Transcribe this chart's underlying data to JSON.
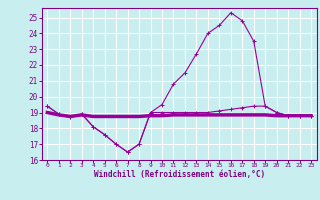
{
  "title": "",
  "xlabel": "Windchill (Refroidissement éolien,°C)",
  "bg_color": "#c8eef0",
  "grid_color": "#ffffff",
  "line_color": "#990099",
  "xlim": [
    -0.5,
    23.5
  ],
  "ylim": [
    16,
    25.6
  ],
  "yticks": [
    16,
    17,
    18,
    19,
    20,
    21,
    22,
    23,
    24,
    25
  ],
  "xticks": [
    0,
    1,
    2,
    3,
    4,
    5,
    6,
    7,
    8,
    9,
    10,
    11,
    12,
    13,
    14,
    15,
    16,
    17,
    18,
    19,
    20,
    21,
    22,
    23
  ],
  "hours": [
    0,
    1,
    2,
    3,
    4,
    5,
    6,
    7,
    8,
    9,
    10,
    11,
    12,
    13,
    14,
    15,
    16,
    17,
    18,
    19,
    20,
    21,
    22,
    23
  ],
  "windchill": [
    19.4,
    18.9,
    18.7,
    18.9,
    18.1,
    17.6,
    17.0,
    16.5,
    17.0,
    19.0,
    19.5,
    20.8,
    21.5,
    22.7,
    24.0,
    24.5,
    25.3,
    24.8,
    23.5,
    19.4,
    19.0,
    18.8,
    18.8,
    18.8
  ],
  "temp": [
    19.4,
    18.9,
    18.7,
    18.9,
    18.1,
    17.6,
    17.0,
    16.5,
    17.0,
    19.0,
    19.0,
    19.0,
    19.0,
    19.0,
    19.0,
    19.1,
    19.2,
    19.3,
    19.4,
    19.4,
    19.0,
    18.8,
    18.8,
    18.8
  ],
  "flat1": [
    19.0,
    18.85,
    18.75,
    18.85,
    18.75,
    18.75,
    18.75,
    18.75,
    18.75,
    18.8,
    18.8,
    18.85,
    18.85,
    18.85,
    18.85,
    18.85,
    18.85,
    18.85,
    18.85,
    18.85,
    18.8,
    18.8,
    18.8,
    18.8
  ],
  "flat2": [
    19.0,
    18.85,
    18.75,
    18.85,
    18.75,
    18.75,
    18.75,
    18.75,
    18.75,
    18.8,
    18.8,
    18.85,
    18.85,
    18.85,
    18.85,
    18.85,
    18.85,
    18.85,
    18.85,
    18.85,
    18.8,
    18.8,
    18.8,
    18.8
  ]
}
